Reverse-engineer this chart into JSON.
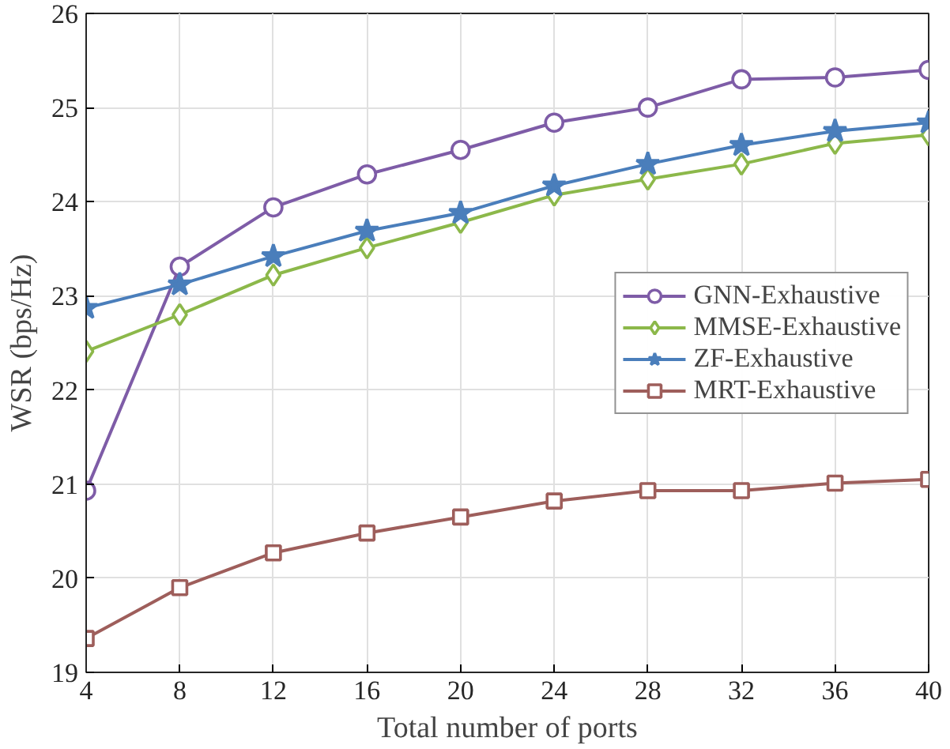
{
  "chart_data": {
    "type": "line",
    "xlabel": "Total number of ports",
    "ylabel": "WSR (bps/Hz)",
    "x": [
      4,
      8,
      12,
      16,
      20,
      24,
      28,
      32,
      36,
      40
    ],
    "series": [
      {
        "name": "GNN-Exhaustive",
        "color": "#7e5ca7",
        "marker": "circle",
        "values": [
          20.93,
          23.31,
          23.94,
          24.29,
          24.55,
          24.84,
          25.0,
          25.3,
          25.32,
          25.4
        ]
      },
      {
        "name": "MMSE-Exhaustive",
        "color": "#8cb84a",
        "marker": "diamond",
        "values": [
          22.41,
          22.8,
          23.22,
          23.51,
          23.78,
          24.07,
          24.24,
          24.4,
          24.62,
          24.71
        ]
      },
      {
        "name": "ZF-Exhaustive",
        "color": "#4a7ebb",
        "marker": "star",
        "values": [
          22.87,
          23.12,
          23.42,
          23.69,
          23.88,
          24.17,
          24.4,
          24.6,
          24.75,
          24.84
        ]
      },
      {
        "name": "MRT-Exhaustive",
        "color": "#9e5e5b",
        "marker": "square",
        "values": [
          19.36,
          19.9,
          20.27,
          20.48,
          20.65,
          20.82,
          20.93,
          20.93,
          21.01,
          21.05
        ]
      }
    ],
    "xlim": [
      4,
      40
    ],
    "ylim": [
      19,
      26
    ],
    "xticks": [
      4,
      8,
      12,
      16,
      20,
      24,
      28,
      32,
      36,
      40
    ],
    "yticks": [
      19,
      20,
      21,
      22,
      23,
      24,
      25,
      26
    ],
    "grid": true,
    "legend": "right",
    "line_style": "solid"
  }
}
